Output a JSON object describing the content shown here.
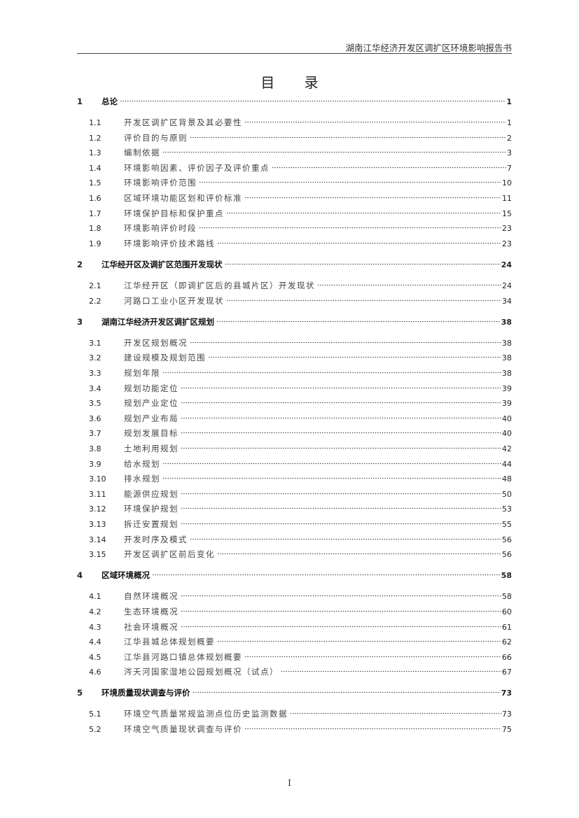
{
  "header": {
    "title": "湖南江华经济开发区调扩区环境影响报告书"
  },
  "toc_title": "目 录",
  "chapters": [
    {
      "num": "1",
      "title": "总论",
      "page": "1",
      "items": [
        {
          "num": "1.1",
          "title": "开发区调扩区背景及其必要性",
          "page": "1"
        },
        {
          "num": "1.2",
          "title": "评价目的与原则",
          "page": "2"
        },
        {
          "num": "1.3",
          "title": "编制依据",
          "page": "3"
        },
        {
          "num": "1.4",
          "title": "环境影响因素、评价因子及评价重点",
          "page": "7"
        },
        {
          "num": "1.5",
          "title": "环境影响评价范围",
          "page": "10"
        },
        {
          "num": "1.6",
          "title": "区域环境功能区划和评价标准",
          "page": "11"
        },
        {
          "num": "1.7",
          "title": "环境保护目标和保护重点",
          "page": "15"
        },
        {
          "num": "1.8",
          "title": "环境影响评价时段",
          "page": "23"
        },
        {
          "num": "1.9",
          "title": "环境影响评价技术路线",
          "page": "23"
        }
      ]
    },
    {
      "num": "2",
      "title": "江华经开区及调扩区范围开发现状",
      "page": "24",
      "items": [
        {
          "num": "2.1",
          "title": "江华经开区（即调扩区后的县城片区）开发现状",
          "page": "24"
        },
        {
          "num": "2.2",
          "title": "河路口工业小区开发现状",
          "page": "34"
        }
      ]
    },
    {
      "num": "3",
      "title": "湖南江华经济开发区调扩区规划",
      "page": "38",
      "items": [
        {
          "num": "3.1",
          "title": "开发区规划概况",
          "page": "38"
        },
        {
          "num": "3.2",
          "title": "建设规模及规划范围",
          "page": "38"
        },
        {
          "num": "3.3",
          "title": "规划年限",
          "page": "38"
        },
        {
          "num": "3.4",
          "title": "规划功能定位",
          "page": "39"
        },
        {
          "num": "3.5",
          "title": "规划产业定位",
          "page": "39"
        },
        {
          "num": "3.6",
          "title": "规划产业布局",
          "page": "40"
        },
        {
          "num": "3.7",
          "title": "规划发展目标",
          "page": "40"
        },
        {
          "num": "3.8",
          "title": "土地利用规划",
          "page": "42"
        },
        {
          "num": "3.9",
          "title": "给水规划",
          "page": "44"
        },
        {
          "num": "3.10",
          "title": "排水规划",
          "page": "48"
        },
        {
          "num": "3.11",
          "title": "能源供应规划",
          "page": "50"
        },
        {
          "num": "3.12",
          "title": "环境保护规划",
          "page": "53"
        },
        {
          "num": "3.13",
          "title": "拆迁安置规划",
          "page": "55"
        },
        {
          "num": "3.14",
          "title": "开发时序及模式",
          "page": "56"
        },
        {
          "num": "3.15",
          "title": "开发区调扩区前后变化",
          "page": "56"
        }
      ]
    },
    {
      "num": "4",
      "title": "区域环境概况",
      "page": "58",
      "items": [
        {
          "num": "4.1",
          "title": "自然环境概况",
          "page": "58"
        },
        {
          "num": "4.2",
          "title": "生态环境概况",
          "page": "60"
        },
        {
          "num": "4.3",
          "title": "社会环境概况",
          "page": "61"
        },
        {
          "num": "4.4",
          "title": "江华县城总体规划概要",
          "page": "62"
        },
        {
          "num": "4.5",
          "title": "江华县河路口镇总体规划概要",
          "page": "66"
        },
        {
          "num": "4.6",
          "title": "涔天河国家湿地公园规划概况（试点）",
          "page": "67"
        }
      ]
    },
    {
      "num": "5",
      "title": "环境质量现状调查与评价",
      "page": "73",
      "items": [
        {
          "num": "5.1",
          "title": "环境空气质量常规监测点位历史监测数据",
          "page": "73"
        },
        {
          "num": "5.2",
          "title": "环境空气质量现状调查与评价",
          "page": "75"
        }
      ]
    }
  ],
  "footer": {
    "page_number": "I"
  }
}
